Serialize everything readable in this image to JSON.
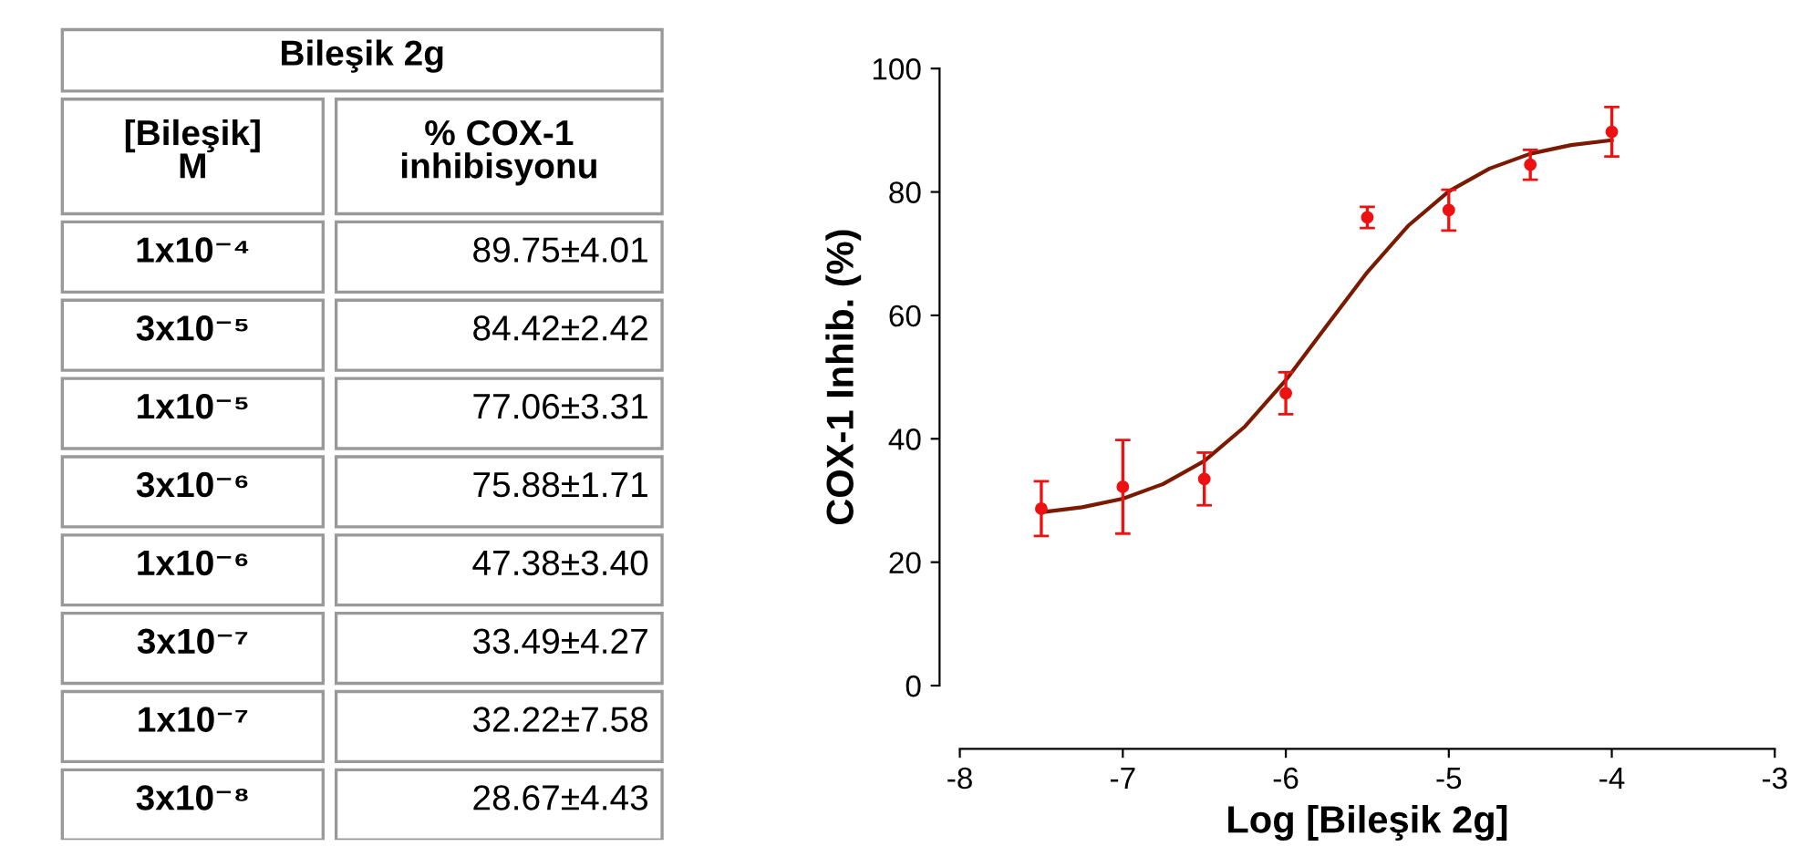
{
  "chart_data": [
    {
      "type": "other",
      "title": "Bileşik 2g",
      "categories": [
        "[Bileşik]\nM",
        "% COX-1\ninhibisyonu"
      ],
      "cell_labels": [
        [
          "1x10⁻⁴",
          "89.75±4.01"
        ],
        [
          "3x10⁻⁵",
          "84.42±2.42"
        ],
        [
          "1x10⁻⁵",
          "77.06±3.31"
        ],
        [
          "3x10⁻⁶",
          "75.88±1.71"
        ],
        [
          "1x10⁻⁶",
          "47.38±3.40"
        ],
        [
          "3x10⁻⁷",
          "33.49±4.27"
        ],
        [
          "1x10⁻⁷",
          "32.22±7.58"
        ],
        [
          "3x10⁻⁸",
          "28.67±4.43"
        ]
      ]
    },
    {
      "type": "scatter",
      "xlabel": "Log [Bileşik 2g]",
      "ylabel": "COX-1 Inhib. (%)",
      "xlim": [
        -8,
        -3
      ],
      "xticks": [
        -8,
        -7,
        -6,
        -5,
        -4,
        -3
      ],
      "ylim": [
        0,
        100
      ],
      "yticks": [
        0,
        20,
        40,
        60,
        80,
        100
      ],
      "grid": false,
      "legend": false,
      "series": [
        {
          "type": "scatter",
          "color": "#ee1111",
          "marker": "circle",
          "x": [
            -4,
            -4.5,
            -5,
            -5.5,
            -6,
            -6.5,
            -7,
            -7.5
          ],
          "values": [
            89.75,
            84.42,
            77.06,
            75.88,
            47.38,
            33.49,
            32.22,
            28.67
          ],
          "errors": [
            4.01,
            2.42,
            3.31,
            1.71,
            3.4,
            4.27,
            7.58,
            4.43
          ]
        },
        {
          "type": "line",
          "color": "#7a1a00",
          "line_style": "solid",
          "x": [
            -7.5,
            -7.25,
            -7,
            -6.75,
            -6.5,
            -6.25,
            -6,
            -5.75,
            -5.5,
            -5.25,
            -5,
            -4.75,
            -4.5,
            -4.25,
            -4
          ],
          "values": [
            28.1,
            28.9,
            30.3,
            32.7,
            36.4,
            42.0,
            49.5,
            58.3,
            67.0,
            74.5,
            80.1,
            83.8,
            86.2,
            87.6,
            88.4
          ]
        }
      ]
    }
  ]
}
